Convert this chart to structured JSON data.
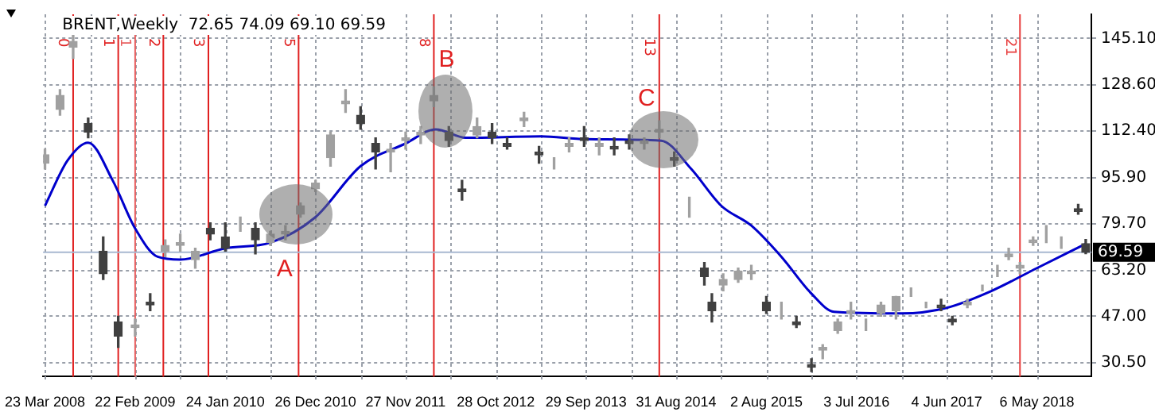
{
  "chart_data": {
    "type": "candlestick",
    "title": "BRENT,Weekly  72.65 74.09 69.10 69.59",
    "colors": [
      "#a0a0a0",
      "#a0a0a0",
      "#a0a0a0",
      "#404040",
      "#404040",
      "#404040",
      "#a0a0a0",
      "#404040",
      "#a0a0a0",
      "#a0a0a0",
      "#a0a0a0",
      "#404040",
      "#404040",
      "#a0a0a0",
      "#404040",
      "#a0a0a0",
      "#a0a0a0",
      "#a0a0a0",
      "#a0a0a0",
      "#a0a0a0",
      "#a0a0a0",
      "#404040",
      "#404040",
      "#a0a0a0",
      "#a0a0a0",
      "#a0a0a0",
      "#a0a0a0",
      "#404040",
      "#404040",
      "#a0a0a0",
      "#404040",
      "#404040",
      "#a0a0a0",
      "#404040",
      "#a0a0a0",
      "#a0a0a0",
      "#404040",
      "#a0a0a0",
      "#404040",
      "#404040",
      "#a0a0a0",
      "#a0a0a0",
      "#404040",
      "#a0a0a0",
      "#404040",
      "#404040",
      "#a0a0a0",
      "#a0a0a0",
      "#a0a0a0",
      "#404040",
      "#a0a0a0",
      "#404040",
      "#404040",
      "#a0a0a0",
      "#a0a0a0",
      "#a0a0a0",
      "#a0a0a0",
      "#a0a0a0",
      "#a0a0a0",
      "#a0a0a0",
      "#a0a0a0",
      "#404040",
      "#404040",
      "#a0a0a0",
      "#a0a0a0",
      "#a0a0a0",
      "#a0a0a0",
      "#a0a0a0",
      "#a0a0a0",
      "#a0a0a0",
      "#a0a0a0",
      "#404040",
      "#404040"
    ],
    "x": [
      "2008-03-23",
      "2008-05-18",
      "2008-07-06",
      "2008-08-31",
      "2008-10-26",
      "2008-12-21",
      "2009-02-22",
      "2009-04-19",
      "2009-06-14",
      "2009-08-09",
      "2009-10-04",
      "2009-11-29",
      "2010-01-24",
      "2010-03-21",
      "2010-05-16",
      "2010-07-11",
      "2010-09-05",
      "2010-10-31",
      "2010-12-26",
      "2011-02-20",
      "2011-04-17",
      "2011-06-12",
      "2011-08-07",
      "2011-10-02",
      "2011-11-27",
      "2012-01-22",
      "2012-03-11",
      "2012-05-06",
      "2012-06-24",
      "2012-08-19",
      "2012-10-14",
      "2012-12-09",
      "2013-02-10",
      "2013-04-07",
      "2013-06-02",
      "2013-07-28",
      "2013-09-22",
      "2013-11-17",
      "2014-01-12",
      "2014-03-09",
      "2014-05-04",
      "2014-06-29",
      "2014-08-24",
      "2014-10-19",
      "2014-12-14",
      "2015-01-11",
      "2015-02-22",
      "2015-04-19",
      "2015-06-07",
      "2015-08-02",
      "2015-09-27",
      "2015-11-22",
      "2016-01-17",
      "2016-02-28",
      "2016-04-24",
      "2016-06-12",
      "2016-08-07",
      "2016-10-02",
      "2016-11-27",
      "2017-01-22",
      "2017-03-19",
      "2017-05-14",
      "2017-06-25",
      "2017-08-20",
      "2017-10-15",
      "2017-12-10",
      "2018-01-21",
      "2018-03-04",
      "2018-04-22",
      "2018-06-10",
      "2018-08-05",
      "2018-10-07",
      "2018-11-04"
    ],
    "ohlc": [
      [
        101,
        106,
        99,
        104
      ],
      [
        120,
        127,
        118,
        125
      ],
      [
        142,
        147,
        138,
        144
      ],
      [
        115,
        117,
        110,
        112
      ],
      [
        70,
        75,
        60,
        62
      ],
      [
        45,
        47,
        36,
        40
      ],
      [
        43,
        46,
        40,
        44
      ],
      [
        52,
        55,
        49,
        51
      ],
      [
        70,
        74,
        68,
        72
      ],
      [
        72,
        76,
        70,
        73
      ],
      [
        67,
        71,
        64,
        70
      ],
      [
        78,
        80,
        74,
        76
      ],
      [
        75,
        80,
        70,
        71
      ],
      [
        80,
        82,
        77,
        80
      ],
      [
        78,
        80,
        69,
        74
      ],
      [
        73,
        77,
        72,
        76
      ],
      [
        76,
        79,
        74,
        77
      ],
      [
        83,
        87,
        82,
        86
      ],
      [
        92,
        95,
        91,
        94
      ],
      [
        103,
        112,
        100,
        111
      ],
      [
        122,
        127,
        119,
        123
      ],
      [
        118,
        121,
        113,
        115
      ],
      [
        108,
        110,
        99,
        105
      ],
      [
        105,
        108,
        98,
        106
      ],
      [
        109,
        112,
        106,
        110
      ],
      [
        111,
        114,
        108,
        112
      ],
      [
        123,
        128,
        121,
        125
      ],
      [
        112,
        114,
        107,
        109
      ],
      [
        92,
        95,
        88,
        91
      ],
      [
        111,
        117,
        110,
        114
      ],
      [
        112,
        115,
        108,
        110
      ],
      [
        108,
        110,
        106,
        107
      ],
      [
        116,
        119,
        114,
        117
      ],
      [
        105,
        107,
        101,
        104
      ],
      [
        101,
        103,
        99,
        101
      ],
      [
        107,
        110,
        105,
        108
      ],
      [
        110,
        114,
        107,
        109
      ],
      [
        107,
        110,
        104,
        108
      ],
      [
        107,
        110,
        104,
        106
      ],
      [
        109,
        111,
        106,
        108
      ],
      [
        108,
        110,
        106,
        109
      ],
      [
        112,
        116,
        110,
        113
      ],
      [
        103,
        105,
        100,
        102
      ],
      [
        86,
        89,
        82,
        86
      ],
      [
        64,
        66,
        58,
        61
      ],
      [
        52,
        55,
        45,
        49
      ],
      [
        58,
        62,
        56,
        60
      ],
      [
        60,
        64,
        59,
        63
      ],
      [
        62,
        65,
        60,
        63
      ],
      [
        52,
        54,
        48,
        49
      ],
      [
        48,
        52,
        46,
        48
      ],
      [
        45,
        47,
        43,
        44
      ],
      [
        30,
        32,
        27.5,
        29
      ],
      [
        35,
        37,
        32,
        36
      ],
      [
        42,
        46,
        41,
        45
      ],
      [
        48,
        52,
        46,
        49
      ],
      [
        44,
        46,
        42,
        44
      ],
      [
        48,
        52,
        47,
        51
      ],
      [
        49,
        54,
        46,
        54
      ],
      [
        55,
        57,
        54,
        55
      ],
      [
        51,
        52,
        50,
        51
      ],
      [
        51,
        53,
        49,
        50
      ],
      [
        46,
        47,
        44,
        45
      ],
      [
        51,
        53,
        50,
        52
      ],
      [
        57,
        58,
        56,
        57
      ],
      [
        63,
        65,
        61,
        63
      ],
      [
        68,
        71,
        67,
        69
      ],
      [
        64,
        66,
        62,
        65
      ],
      [
        73,
        75,
        72,
        74
      ],
      [
        76,
        79,
        73,
        76
      ],
      [
        73,
        75,
        71,
        73
      ],
      [
        85,
        86.5,
        83,
        84
      ],
      [
        72.65,
        74.09,
        69.1,
        69.59
      ]
    ],
    "series": [
      {
        "type": "line",
        "color": "#0000cc",
        "x": [
          "2008-03-23",
          "2008-06-15",
          "2008-08-31",
          "2008-11-30",
          "2009-02-22",
          "2009-05-17",
          "2009-08-09",
          "2010-01-24",
          "2010-07-11",
          "2010-12-26",
          "2011-06-12",
          "2011-11-27",
          "2012-03-18",
          "2012-07-08",
          "2013-04-14",
          "2013-09-29",
          "2014-07-06",
          "2014-10-26",
          "2015-02-15",
          "2015-06-07",
          "2015-09-27",
          "2016-01-17",
          "2016-04-10",
          "2016-12-18",
          "2017-06-04",
          "2017-11-19",
          "2018-05-06",
          "2018-11-04"
        ],
        "values": [
          86,
          102,
          108.3,
          95,
          78,
          68,
          67,
          71,
          73,
          82,
          100,
          108,
          113,
          110,
          110.5,
          109.5,
          109,
          99,
          86,
          79,
          68,
          55,
          48.6,
          48,
          50,
          56,
          64,
          72.6
        ]
      }
    ],
    "xlim": [
      "2008-03-16",
      "2018-11-25"
    ],
    "xticks": [
      {
        "value": "2008-03-23",
        "label": "23 Mar 2008"
      },
      {
        "value": "2008-09-07",
        "label": null
      },
      {
        "value": "2009-02-22",
        "label": "22 Feb 2009"
      },
      {
        "value": "2009-08-09",
        "label": null
      },
      {
        "value": "2010-01-24",
        "label": "24 Jan 2010"
      },
      {
        "value": "2010-07-11",
        "label": null
      },
      {
        "value": "2010-12-26",
        "label": "26 Dec 2010"
      },
      {
        "value": "2011-06-12",
        "label": null
      },
      {
        "value": "2011-11-27",
        "label": "27 Nov 2011"
      },
      {
        "value": "2012-05-13",
        "label": null
      },
      {
        "value": "2012-10-28",
        "label": "28 Oct 2012"
      },
      {
        "value": "2013-04-14",
        "label": null
      },
      {
        "value": "2013-09-29",
        "label": "29 Sep 2013"
      },
      {
        "value": "2014-03-16",
        "label": null
      },
      {
        "value": "2014-08-31",
        "label": "31 Aug 2014"
      },
      {
        "value": "2015-02-15",
        "label": null
      },
      {
        "value": "2015-08-02",
        "label": "2 Aug 2015"
      },
      {
        "value": "2016-01-17",
        "label": null
      },
      {
        "value": "2016-07-03",
        "label": "3 Jul 2016"
      },
      {
        "value": "2016-12-18",
        "label": null
      },
      {
        "value": "2017-06-04",
        "label": "4 Jun 2017"
      },
      {
        "value": "2017-11-19",
        "label": null
      },
      {
        "value": "2018-05-06",
        "label": "6 May 2018"
      }
    ],
    "ylim": [
      25.7,
      153.6
    ],
    "yticks": [
      {
        "value": 30.5,
        "label": "30.50"
      },
      {
        "value": 47,
        "label": "47.00"
      },
      {
        "value": 63.2,
        "label": "63.20"
      },
      {
        "value": 79.7,
        "label": "79.70"
      },
      {
        "value": 95.9,
        "label": "95.90"
      },
      {
        "value": 112.4,
        "label": "112.40"
      },
      {
        "value": 128.6,
        "label": "128.60"
      },
      {
        "value": 145.1,
        "label": "145.10"
      }
    ],
    "ref_lines": [
      {
        "axis": "x",
        "value": "2008-07-06",
        "label": "0",
        "color": "#e02020"
      },
      {
        "axis": "x",
        "value": "2008-12-21",
        "label": "1",
        "color": "#e02020"
      },
      {
        "axis": "x",
        "value": "2009-02-22",
        "label": "1",
        "color": "#e86060"
      },
      {
        "axis": "x",
        "value": "2009-06-07",
        "label": "2",
        "color": "#e02020"
      },
      {
        "axis": "x",
        "value": "2009-11-22",
        "label": "3",
        "color": "#e02020"
      },
      {
        "axis": "x",
        "value": "2010-10-24",
        "label": "5",
        "color": "#e02020"
      },
      {
        "axis": "x",
        "value": "2012-03-11",
        "label": "8",
        "color": "#e02020"
      },
      {
        "axis": "x",
        "value": "2014-06-29",
        "label": "13",
        "color": "#e02020"
      },
      {
        "axis": "x",
        "value": "2018-03-04",
        "label": "21",
        "color": "#e84040"
      },
      {
        "axis": "y",
        "value": 69.59,
        "label": "69.59",
        "color": "#a8b8d0"
      }
    ],
    "annotations": [
      {
        "text": "A",
        "x": "2010-10-31",
        "y": 86
      },
      {
        "text": "B",
        "x": "2012-03-11",
        "y": 125
      },
      {
        "text": "C",
        "x": "2014-06-29",
        "y": 113
      }
    ],
    "grid": true,
    "legend": false
  }
}
